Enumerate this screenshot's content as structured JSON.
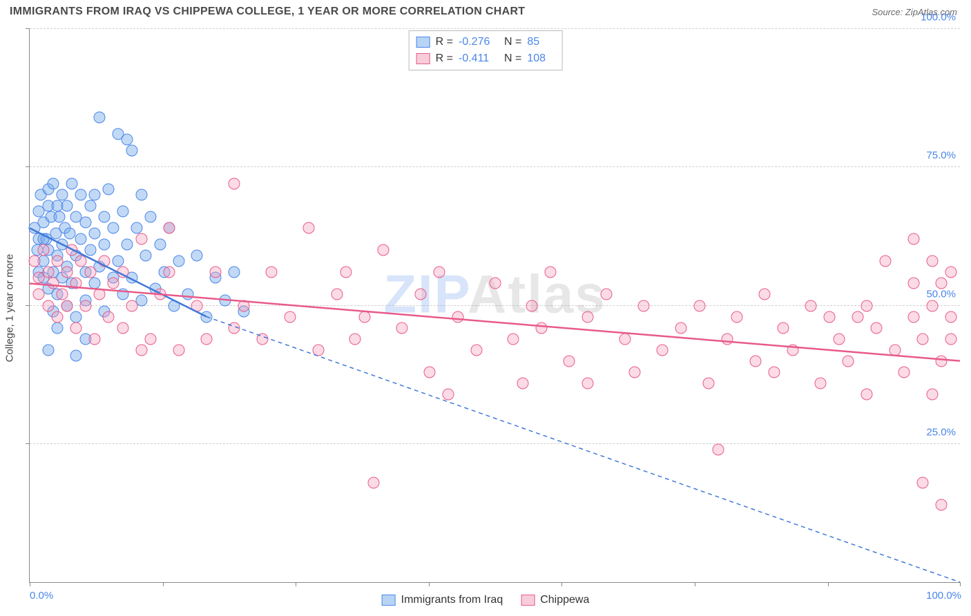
{
  "header": {
    "title": "IMMIGRANTS FROM IRAQ VS CHIPPEWA COLLEGE, 1 YEAR OR MORE CORRELATION CHART",
    "source": "Source: ZipAtlas.com"
  },
  "watermark": {
    "z": "ZIP",
    "rest": "Atlas"
  },
  "chart": {
    "type": "scatter",
    "ylabel": "College, 1 year or more",
    "xlim": [
      0,
      100
    ],
    "ylim": [
      0,
      100
    ],
    "xtick_positions": [
      0,
      14.3,
      28.6,
      42.9,
      57.2,
      71.5,
      85.8,
      100
    ],
    "xtick_labels_visible": {
      "0": "0.0%",
      "100": "100.0%"
    },
    "ytick_positions": [
      25,
      50,
      75,
      100
    ],
    "ytick_labels": [
      "25.0%",
      "50.0%",
      "75.0%",
      "100.0%"
    ],
    "grid_color": "#cfcfcf",
    "axis_color": "#888888",
    "background_color": "#ffffff",
    "point_radius": 8.5,
    "point_opacity": 0.55,
    "title_fontsize": 16,
    "label_fontsize": 15,
    "tick_fontsize": 15,
    "tick_color": "#4a86e8"
  },
  "legend_top": {
    "rows": [
      {
        "swatch_fill": "#b8d4f5",
        "swatch_border": "#4a86e8",
        "r_label": "R =",
        "r_value": "-0.276",
        "n_label": "N =",
        "n_value": "85"
      },
      {
        "swatch_fill": "#f7cdd9",
        "swatch_border": "#e85a8a",
        "r_label": "R =",
        "r_value": "-0.411",
        "n_label": "N =",
        "n_value": "108"
      }
    ]
  },
  "legend_bottom": {
    "items": [
      {
        "swatch_fill": "#b8d4f5",
        "swatch_border": "#4a86e8",
        "label": "Immigrants from Iraq"
      },
      {
        "swatch_fill": "#f7cdd9",
        "swatch_border": "#e85a8a",
        "label": "Chippewa"
      }
    ]
  },
  "series": [
    {
      "name": "Immigrants from Iraq",
      "color_fill": "rgba(120,170,235,0.45)",
      "color_border": "#4a86e8",
      "trend": {
        "solid": [
          [
            0,
            64
          ],
          [
            19,
            48
          ]
        ],
        "dashed": [
          [
            19,
            48
          ],
          [
            100,
            0
          ]
        ],
        "color": "#3f78d8",
        "width": 2.5,
        "dash": "6,5"
      },
      "points": [
        [
          0.5,
          64
        ],
        [
          0.8,
          60
        ],
        [
          1,
          62
        ],
        [
          1,
          67
        ],
        [
          1,
          56
        ],
        [
          1.2,
          70
        ],
        [
          1.5,
          58
        ],
        [
          1.5,
          55
        ],
        [
          1.5,
          65
        ],
        [
          1.8,
          62
        ],
        [
          2,
          71
        ],
        [
          2,
          53
        ],
        [
          2,
          68
        ],
        [
          2,
          60
        ],
        [
          2.3,
          66
        ],
        [
          2.5,
          49
        ],
        [
          2.5,
          72
        ],
        [
          2.5,
          56
        ],
        [
          2.8,
          63
        ],
        [
          3,
          59
        ],
        [
          3,
          68
        ],
        [
          3,
          52
        ],
        [
          3.2,
          66
        ],
        [
          3.5,
          61
        ],
        [
          3.5,
          70
        ],
        [
          3.5,
          55
        ],
        [
          3.8,
          64
        ],
        [
          4,
          50
        ],
        [
          4,
          68
        ],
        [
          4,
          57
        ],
        [
          4.3,
          63
        ],
        [
          4.5,
          72
        ],
        [
          4.5,
          54
        ],
        [
          5,
          66
        ],
        [
          5,
          59
        ],
        [
          5,
          48
        ],
        [
          5.5,
          70
        ],
        [
          5.5,
          62
        ],
        [
          6,
          56
        ],
        [
          6,
          65
        ],
        [
          6,
          51
        ],
        [
          6.5,
          68
        ],
        [
          6.5,
          60
        ],
        [
          7,
          54
        ],
        [
          7,
          63
        ],
        [
          7,
          70
        ],
        [
          7.5,
          84
        ],
        [
          7.5,
          57
        ],
        [
          8,
          66
        ],
        [
          8,
          49
        ],
        [
          8,
          61
        ],
        [
          8.5,
          71
        ],
        [
          9,
          55
        ],
        [
          9,
          64
        ],
        [
          9.5,
          81
        ],
        [
          9.5,
          58
        ],
        [
          10,
          67
        ],
        [
          10,
          52
        ],
        [
          10.5,
          80
        ],
        [
          10.5,
          61
        ],
        [
          11,
          78
        ],
        [
          11,
          55
        ],
        [
          11.5,
          64
        ],
        [
          12,
          70
        ],
        [
          12,
          51
        ],
        [
          12.5,
          59
        ],
        [
          13,
          66
        ],
        [
          13.5,
          53
        ],
        [
          14,
          61
        ],
        [
          14.5,
          56
        ],
        [
          15,
          64
        ],
        [
          15.5,
          50
        ],
        [
          16,
          58
        ],
        [
          17,
          52
        ],
        [
          18,
          59
        ],
        [
          19,
          48
        ],
        [
          20,
          55
        ],
        [
          21,
          51
        ],
        [
          22,
          56
        ],
        [
          23,
          49
        ],
        [
          5,
          41
        ],
        [
          3,
          46
        ],
        [
          6,
          44
        ],
        [
          2,
          42
        ],
        [
          1.5,
          62
        ]
      ]
    },
    {
      "name": "Chippewa",
      "color_fill": "rgba(245,160,190,0.38)",
      "color_border": "#e85a8a",
      "trend": {
        "solid": [
          [
            0,
            54
          ],
          [
            100,
            40
          ]
        ],
        "dashed": null,
        "color": "#e85a8a",
        "width": 2.5
      },
      "points": [
        [
          0.5,
          58
        ],
        [
          1,
          55
        ],
        [
          1,
          52
        ],
        [
          1.5,
          60
        ],
        [
          2,
          56
        ],
        [
          2,
          50
        ],
        [
          2.5,
          54
        ],
        [
          3,
          58
        ],
        [
          3,
          48
        ],
        [
          3.5,
          52
        ],
        [
          4,
          56
        ],
        [
          4,
          50
        ],
        [
          4.5,
          60
        ],
        [
          5,
          46
        ],
        [
          5,
          54
        ],
        [
          5.5,
          58
        ],
        [
          6,
          50
        ],
        [
          6.5,
          56
        ],
        [
          7,
          44
        ],
        [
          7.5,
          52
        ],
        [
          8,
          58
        ],
        [
          8.5,
          48
        ],
        [
          9,
          54
        ],
        [
          10,
          46
        ],
        [
          10,
          56
        ],
        [
          11,
          50
        ],
        [
          12,
          62
        ],
        [
          13,
          44
        ],
        [
          14,
          52
        ],
        [
          15,
          56
        ],
        [
          15,
          64
        ],
        [
          16,
          42
        ],
        [
          18,
          50
        ],
        [
          19,
          44
        ],
        [
          20,
          56
        ],
        [
          22,
          46
        ],
        [
          22,
          72
        ],
        [
          23,
          50
        ],
        [
          25,
          44
        ],
        [
          26,
          56
        ],
        [
          28,
          48
        ],
        [
          30,
          64
        ],
        [
          31,
          42
        ],
        [
          33,
          52
        ],
        [
          34,
          56
        ],
        [
          35,
          44
        ],
        [
          36,
          48
        ],
        [
          38,
          60
        ],
        [
          40,
          46
        ],
        [
          42,
          52
        ],
        [
          43,
          38
        ],
        [
          44,
          56
        ],
        [
          45,
          34
        ],
        [
          46,
          48
        ],
        [
          48,
          42
        ],
        [
          50,
          54
        ],
        [
          52,
          44
        ],
        [
          53,
          36
        ],
        [
          54,
          50
        ],
        [
          55,
          46
        ],
        [
          56,
          56
        ],
        [
          58,
          40
        ],
        [
          60,
          48
        ],
        [
          60,
          36
        ],
        [
          62,
          52
        ],
        [
          64,
          44
        ],
        [
          65,
          38
        ],
        [
          66,
          50
        ],
        [
          68,
          42
        ],
        [
          70,
          46
        ],
        [
          72,
          50
        ],
        [
          73,
          36
        ],
        [
          74,
          24
        ],
        [
          75,
          44
        ],
        [
          76,
          48
        ],
        [
          78,
          40
        ],
        [
          79,
          52
        ],
        [
          80,
          38
        ],
        [
          81,
          46
        ],
        [
          82,
          42
        ],
        [
          84,
          50
        ],
        [
          85,
          36
        ],
        [
          86,
          48
        ],
        [
          87,
          44
        ],
        [
          88,
          40
        ],
        [
          90,
          50
        ],
        [
          90,
          34
        ],
        [
          91,
          46
        ],
        [
          92,
          58
        ],
        [
          93,
          42
        ],
        [
          94,
          38
        ],
        [
          95,
          48
        ],
        [
          95,
          62
        ],
        [
          96,
          44
        ],
        [
          96,
          18
        ],
        [
          97,
          50
        ],
        [
          97,
          58
        ],
        [
          97,
          34
        ],
        [
          98,
          54
        ],
        [
          98,
          40
        ],
        [
          98,
          14
        ],
        [
          99,
          48
        ],
        [
          99,
          56
        ],
        [
          99,
          44
        ],
        [
          95,
          54
        ],
        [
          89,
          48
        ],
        [
          37,
          18
        ],
        [
          12,
          42
        ]
      ]
    }
  ]
}
